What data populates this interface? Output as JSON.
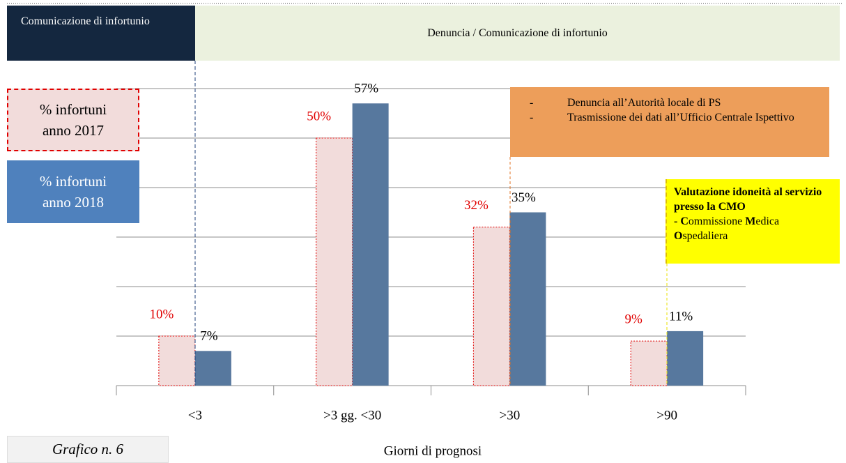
{
  "chart_data": {
    "type": "bar",
    "categories": [
      "<3",
      ">3 gg. <30",
      ">30",
      ">90"
    ],
    "series": [
      {
        "name": "% infortuni anno 2017",
        "color": "#f2dcdb",
        "edgecolor": "#e00000",
        "label_color": "#e00000",
        "values": [
          10,
          50,
          32,
          9
        ],
        "value_labels": [
          "10%",
          "50%",
          "32%",
          "9%"
        ]
      },
      {
        "name": "% infortuni anno 2018",
        "color": "#57789e",
        "label_color": "#000000",
        "values": [
          7,
          57,
          35,
          11
        ],
        "value_labels": [
          "7%",
          "57%",
          "35%",
          "11%"
        ]
      }
    ],
    "xlabel": "Giorni di prognosi",
    "ylim": [
      0,
      60
    ],
    "yticks": [
      0,
      10,
      20,
      30,
      40,
      50,
      60
    ],
    "grid": true
  },
  "header": {
    "left": "Comunicazione di infortunio",
    "right": "Denuncia / Comunicazione di infortunio"
  },
  "orange_box": {
    "items": [
      "Denuncia all’Autorità locale di PS",
      "Trasmissione dei dati all’Ufficio Centrale Ispettivo"
    ]
  },
  "yellow_box": {
    "title": "Valutazione idoneità al servizio presso la  CMO",
    "parts": [
      "- C",
      "ommissione ",
      "M",
      "edica ",
      "O",
      "spedaliera"
    ]
  },
  "caption": "Grafico n. 6"
}
